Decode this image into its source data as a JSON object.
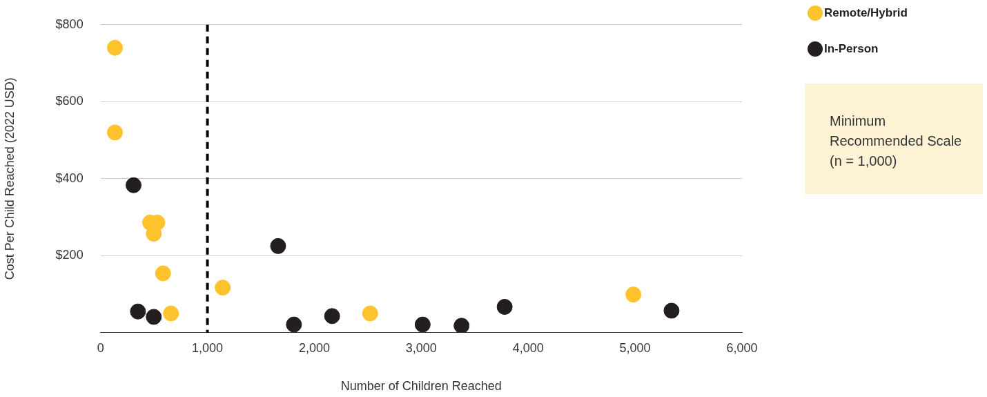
{
  "chart_data": {
    "type": "scatter",
    "xlabel": "Number of Children Reached",
    "ylabel": "Cost Per Child Reached (2022 USD)",
    "series": [
      {
        "name": "Remote/Hybrid",
        "color": "#fec22d",
        "x": [
          135,
          135,
          464,
          531,
          498,
          585,
          659,
          1143,
          2522,
          4984
        ],
        "values": [
          740,
          520,
          286,
          286,
          257,
          154,
          50,
          117,
          50,
          99
        ]
      },
      {
        "name": "In-Person",
        "color": "#231f20",
        "x": [
          309,
          350,
          498,
          1661,
          1809,
          2166,
          3013,
          3377,
          3780,
          5341
        ],
        "values": [
          383,
          55,
          41,
          225,
          21,
          43,
          21,
          18,
          67,
          57
        ]
      }
    ],
    "xlim": [
      0,
      6000
    ],
    "xticks": [
      0,
      {
        "value": 1000,
        "label": "1,000"
      },
      {
        "value": 2000,
        "label": "2,000"
      },
      {
        "value": 3000,
        "label": "3,000"
      },
      {
        "value": 4000,
        "label": "4,000"
      },
      {
        "value": 5000,
        "label": "5,000"
      },
      {
        "value": 6000,
        "label": "6,000"
      }
    ],
    "ylim": [
      0,
      800
    ],
    "yticks": [
      {
        "value": 0,
        "label": null
      },
      {
        "value": 200,
        "label": "$200"
      },
      {
        "value": 400,
        "label": "$400"
      },
      {
        "value": 600,
        "label": "$600"
      },
      {
        "value": 800,
        "label": "$800"
      }
    ],
    "grid": "y",
    "legend": "top right",
    "marker": "circle",
    "annotations": [
      "Minimum Recommended Scale (n = 1,000)"
    ],
    "ref_lines": [
      {
        "axis": "x",
        "value": 1000,
        "color": "#000000",
        "line_style": "dashed"
      }
    ]
  }
}
